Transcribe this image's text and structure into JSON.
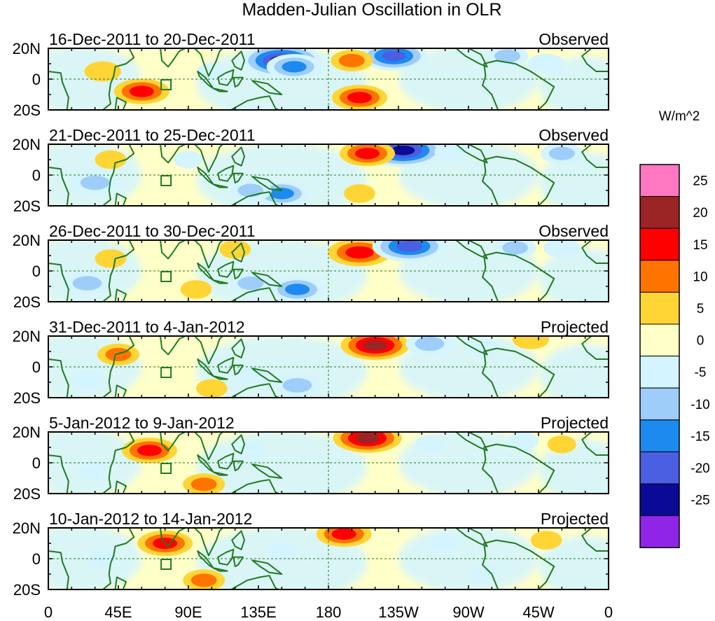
{
  "chart_data": {
    "type": "heatmap",
    "title": "Madden-Julian Oscillation in OLR",
    "units": "W/m^2",
    "lat_tick_labels": [
      "20N",
      "0",
      "20S"
    ],
    "lon_tick_labels": [
      "0",
      "45E",
      "90E",
      "135E",
      "180",
      "135W",
      "90W",
      "45W",
      "0"
    ],
    "lon_range_deg_east": [
      0,
      360
    ],
    "lat_range_deg": [
      -20,
      20
    ],
    "colorbar": {
      "labels": [
        "25",
        "20",
        "15",
        "10",
        "5",
        "0",
        "-5",
        "-10",
        "-15",
        "-20",
        "-25"
      ],
      "colors_top_to_bottom": [
        "#ff77c1",
        "#9b2424",
        "#ff0000",
        "#ff7400",
        "#ffd535",
        "#ffffc8",
        "#d4f4ff",
        "#9ecdfa",
        "#1c8aef",
        "#4a5fe1",
        "#0a0a96",
        "#9025e8"
      ]
    },
    "panels": [
      {
        "date_range": "16-Dec-2011 to 20-Dec-2011",
        "status": "Observed",
        "anomalies": [
          {
            "lon": 150,
            "lat": 12,
            "value": -25
          },
          {
            "lon": 158,
            "lat": 8,
            "value": -15
          },
          {
            "lon": 222,
            "lat": 15,
            "value": -20
          },
          {
            "lon": 195,
            "lat": 12,
            "value": 10
          },
          {
            "lon": 200,
            "lat": -12,
            "value": 15
          },
          {
            "lon": 60,
            "lat": -8,
            "value": 15
          },
          {
            "lon": 35,
            "lat": 5,
            "value": 8
          },
          {
            "lon": 295,
            "lat": 15,
            "value": -10
          },
          {
            "lon": 320,
            "lat": 10,
            "value": -8
          },
          {
            "lon": 105,
            "lat": 5,
            "value": -5
          }
        ]
      },
      {
        "date_range": "21-Dec-2011 to 25-Dec-2011",
        "status": "Observed",
        "anomalies": [
          {
            "lon": 150,
            "lat": -12,
            "value": -15
          },
          {
            "lon": 130,
            "lat": -10,
            "value": -10
          },
          {
            "lon": 228,
            "lat": 16,
            "value": -25
          },
          {
            "lon": 205,
            "lat": 14,
            "value": 15
          },
          {
            "lon": 30,
            "lat": -5,
            "value": -12
          },
          {
            "lon": 330,
            "lat": 14,
            "value": -10
          },
          {
            "lon": 260,
            "lat": 15,
            "value": -8
          },
          {
            "lon": 90,
            "lat": 10,
            "value": -5
          },
          {
            "lon": 40,
            "lat": 10,
            "value": 6
          },
          {
            "lon": 200,
            "lat": -12,
            "value": 6
          }
        ]
      },
      {
        "date_range": "26-Dec-2011 to 30-Dec-2011",
        "status": "Observed",
        "anomalies": [
          {
            "lon": 200,
            "lat": 12,
            "value": 18
          },
          {
            "lon": 232,
            "lat": 16,
            "value": -22
          },
          {
            "lon": 160,
            "lat": -12,
            "value": -15
          },
          {
            "lon": 130,
            "lat": -8,
            "value": -10
          },
          {
            "lon": 25,
            "lat": -8,
            "value": -12
          },
          {
            "lon": 300,
            "lat": 15,
            "value": -10
          },
          {
            "lon": 330,
            "lat": 15,
            "value": -8
          },
          {
            "lon": 40,
            "lat": 8,
            "value": 6
          },
          {
            "lon": 120,
            "lat": 14,
            "value": 6
          },
          {
            "lon": 95,
            "lat": -12,
            "value": 6
          }
        ]
      },
      {
        "date_range": "31-Dec-2011 to 4-Jan-2012",
        "status": "Projected",
        "anomalies": [
          {
            "lon": 210,
            "lat": 14,
            "value": 20
          },
          {
            "lon": 245,
            "lat": 15,
            "value": -12
          },
          {
            "lon": 310,
            "lat": 18,
            "value": 8
          },
          {
            "lon": 45,
            "lat": 8,
            "value": 10
          },
          {
            "lon": 160,
            "lat": -12,
            "value": -12
          },
          {
            "lon": 130,
            "lat": -5,
            "value": -6
          },
          {
            "lon": 25,
            "lat": -8,
            "value": -6
          },
          {
            "lon": 280,
            "lat": 12,
            "value": -6
          },
          {
            "lon": 105,
            "lat": -14,
            "value": 6
          }
        ]
      },
      {
        "date_range": "5-Jan-2012 to 9-Jan-2012",
        "status": "Projected",
        "anomalies": [
          {
            "lon": 205,
            "lat": 16,
            "value": 20
          },
          {
            "lon": 65,
            "lat": 8,
            "value": 15
          },
          {
            "lon": 100,
            "lat": -14,
            "value": 10
          },
          {
            "lon": 30,
            "lat": -5,
            "value": -6
          },
          {
            "lon": 245,
            "lat": 12,
            "value": -5
          },
          {
            "lon": 305,
            "lat": 14,
            "value": -6
          },
          {
            "lon": 130,
            "lat": 8,
            "value": -5
          },
          {
            "lon": 330,
            "lat": 12,
            "value": 5
          }
        ]
      },
      {
        "date_range": "10-Jan-2012 to 14-Jan-2012",
        "status": "Projected",
        "anomalies": [
          {
            "lon": 190,
            "lat": 16,
            "value": 15
          },
          {
            "lon": 75,
            "lat": 10,
            "value": 15
          },
          {
            "lon": 100,
            "lat": -14,
            "value": 10
          },
          {
            "lon": 35,
            "lat": 0,
            "value": -6
          },
          {
            "lon": 255,
            "lat": 10,
            "value": -5
          },
          {
            "lon": 320,
            "lat": 12,
            "value": 6
          },
          {
            "lon": 150,
            "lat": 5,
            "value": -5
          },
          {
            "lon": 280,
            "lat": -10,
            "value": -5
          }
        ]
      }
    ]
  }
}
